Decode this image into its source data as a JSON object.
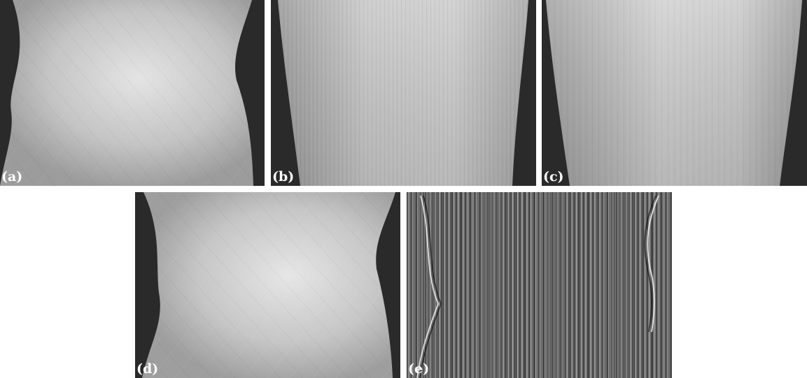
{
  "panels": [
    {
      "id": "a",
      "label": "(a)"
    },
    {
      "id": "b",
      "label": "(b)"
    },
    {
      "id": "c",
      "label": "(c)"
    },
    {
      "id": "d",
      "label": "(d)"
    },
    {
      "id": "e",
      "label": "(e)"
    }
  ],
  "colors": {
    "background": "#ffffff",
    "dark": "#2a2a2a",
    "bright": "#d8d8d8",
    "label": "#ffffff"
  }
}
